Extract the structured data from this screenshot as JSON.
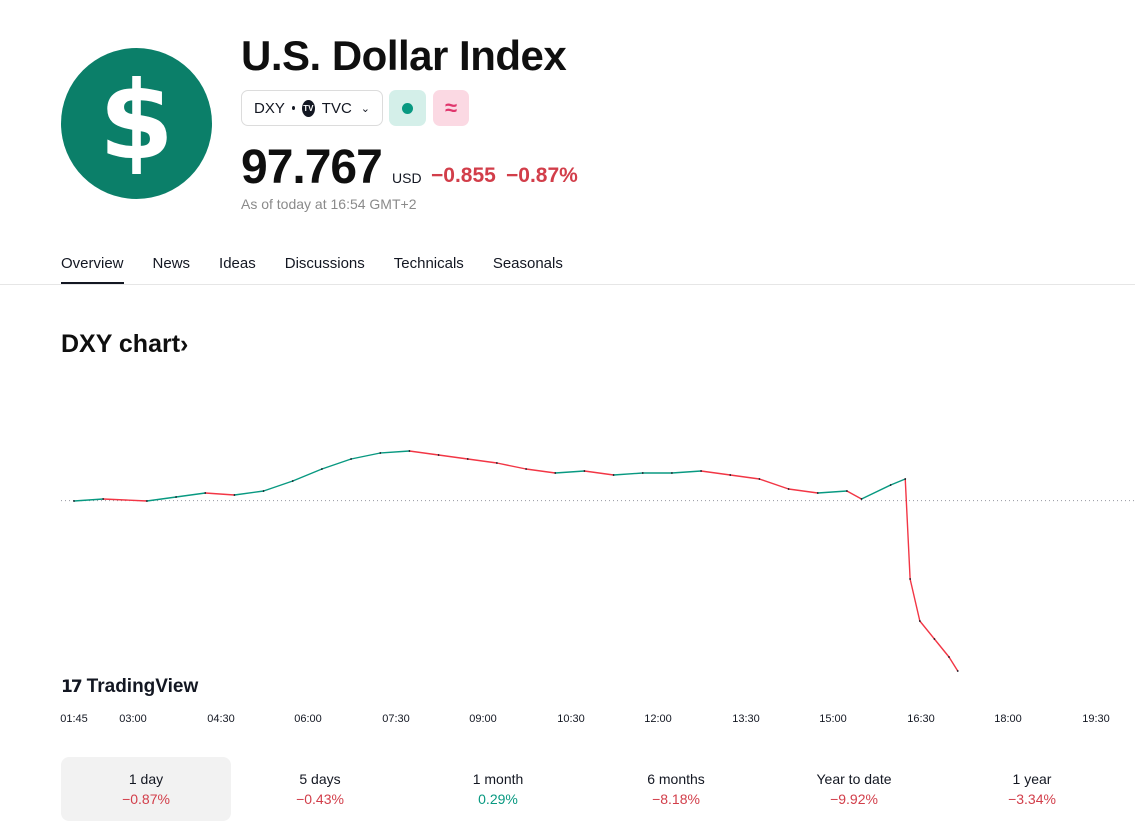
{
  "header": {
    "logo_symbol": "$",
    "title": "U.S. Dollar Index",
    "symbol": "DXY",
    "exchange": "TVC",
    "exchange_icon": "tradingview-mini-logo-icon",
    "wave_glyph": "≈",
    "price": "97.767",
    "currency": "USD",
    "change": "−0.855",
    "change_pct": "−0.87%",
    "as_of": "As of today at 16:54 GMT+2",
    "colors": {
      "brand_green": "#0b7f69",
      "negative": "#d23e4a",
      "positive": "#089981"
    }
  },
  "tabs": [
    {
      "label": "Overview",
      "active": true
    },
    {
      "label": "News"
    },
    {
      "label": "Ideas"
    },
    {
      "label": "Discussions"
    },
    {
      "label": "Technicals"
    },
    {
      "label": "Seasonals"
    }
  ],
  "chart_section": {
    "heading": "DXY chart",
    "heading_arrow": "›",
    "brand": "TradingView",
    "x_ticks": [
      "01:45",
      "03:00",
      "04:30",
      "06:00",
      "07:30",
      "09:00",
      "10:30",
      "12:00",
      "13:30",
      "15:00",
      "16:30",
      "18:00",
      "19:30"
    ]
  },
  "chart_data": {
    "type": "line",
    "title": "",
    "xlabel": "",
    "ylabel": "",
    "previous_close": 98.622,
    "ylim": [
      97.6,
      98.95
    ],
    "x": [
      "01:45",
      "02:15",
      "03:00",
      "03:30",
      "04:00",
      "04:30",
      "05:00",
      "05:30",
      "06:00",
      "06:30",
      "07:00",
      "07:30",
      "08:00",
      "08:30",
      "09:00",
      "09:30",
      "10:00",
      "10:30",
      "11:00",
      "11:30",
      "12:00",
      "12:30",
      "13:00",
      "13:30",
      "14:00",
      "14:30",
      "15:00",
      "15:15",
      "15:45",
      "16:00",
      "16:05",
      "16:15",
      "16:30",
      "16:45",
      "16:54"
    ],
    "values": [
      98.62,
      98.63,
      98.62,
      98.64,
      98.66,
      98.65,
      98.67,
      98.72,
      98.78,
      98.83,
      98.86,
      98.87,
      98.85,
      98.83,
      98.81,
      98.78,
      98.76,
      98.77,
      98.75,
      98.76,
      98.76,
      98.77,
      98.75,
      98.73,
      98.68,
      98.66,
      98.67,
      98.63,
      98.7,
      98.73,
      98.23,
      98.02,
      97.93,
      97.84,
      97.77
    ],
    "grid": false,
    "legend": "none"
  },
  "periods": [
    {
      "label": "1 day",
      "value": "−0.87%",
      "sign": "neg",
      "active": true
    },
    {
      "label": "5 days",
      "value": "−0.43%",
      "sign": "neg"
    },
    {
      "label": "1 month",
      "value": "0.29%",
      "sign": "pos"
    },
    {
      "label": "6 months",
      "value": "−8.18%",
      "sign": "neg"
    },
    {
      "label": "Year to date",
      "value": "−9.92%",
      "sign": "neg"
    },
    {
      "label": "1 year",
      "value": "−3.34%",
      "sign": "neg"
    }
  ]
}
